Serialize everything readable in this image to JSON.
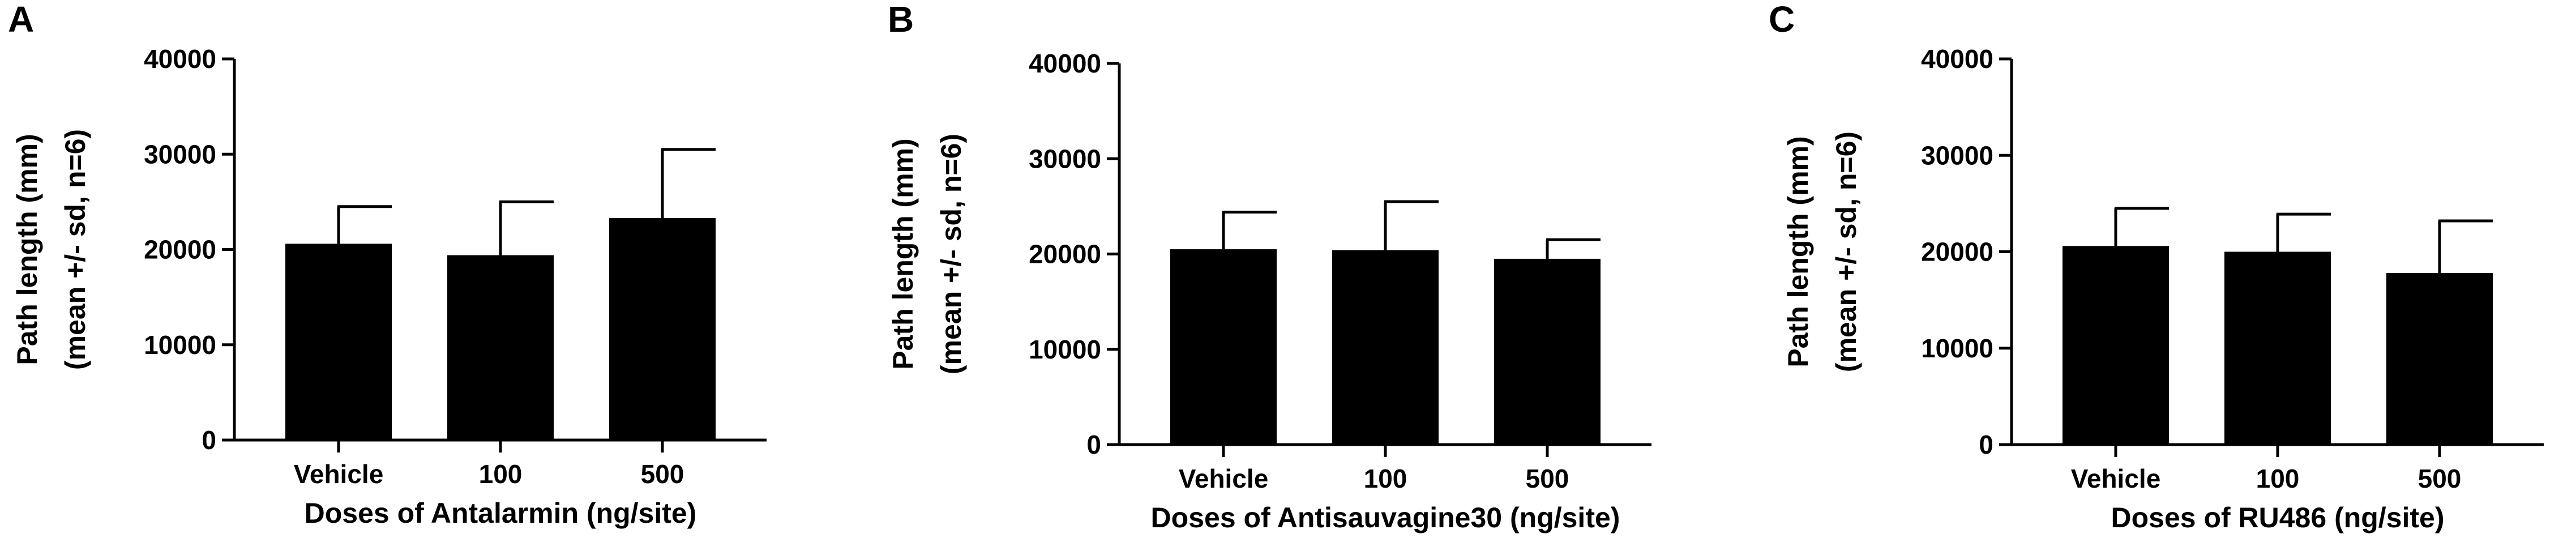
{
  "chart_data": [
    {
      "type": "bar",
      "panel": "A",
      "categories": [
        "Vehicle",
        "100",
        "500"
      ],
      "values": [
        20600,
        19400,
        23300
      ],
      "error_sd": [
        3900,
        5600,
        7200
      ],
      "xlabel": "Doses of Antalarmin (ng/site)",
      "ylabel_line1": "Path length (mm)",
      "ylabel_line2": "(mean +/- sd, n=6)",
      "ylim": [
        0,
        40000
      ],
      "yticks": [
        "0",
        "10000",
        "20000",
        "30000",
        "40000"
      ],
      "bar_color": "#000000",
      "grid": false
    },
    {
      "type": "bar",
      "panel": "B",
      "categories": [
        "Vehicle",
        "100",
        "500"
      ],
      "values": [
        20500,
        20400,
        19500
      ],
      "error_sd": [
        3900,
        5100,
        2000
      ],
      "xlabel": "Doses of Antisauvagine30 (ng/site)",
      "ylabel_line1": "Path length (mm)",
      "ylabel_line2": "(mean +/- sd, n=6)",
      "ylim": [
        0,
        40000
      ],
      "yticks": [
        "0",
        "10000",
        "20000",
        "30000",
        "40000"
      ],
      "bar_color": "#000000",
      "grid": false
    },
    {
      "type": "bar",
      "panel": "C",
      "categories": [
        "Vehicle",
        "100",
        "500"
      ],
      "values": [
        20600,
        20000,
        17800
      ],
      "error_sd": [
        3900,
        3900,
        5400
      ],
      "xlabel": "Doses of RU486 (ng/site)",
      "ylabel_line1": "Path length (mm)",
      "ylabel_line2": "(mean +/- sd, n=6)",
      "ylim": [
        0,
        40000
      ],
      "yticks": [
        "0",
        "10000",
        "20000",
        "30000",
        "40000"
      ],
      "bar_color": "#000000",
      "grid": false
    }
  ]
}
